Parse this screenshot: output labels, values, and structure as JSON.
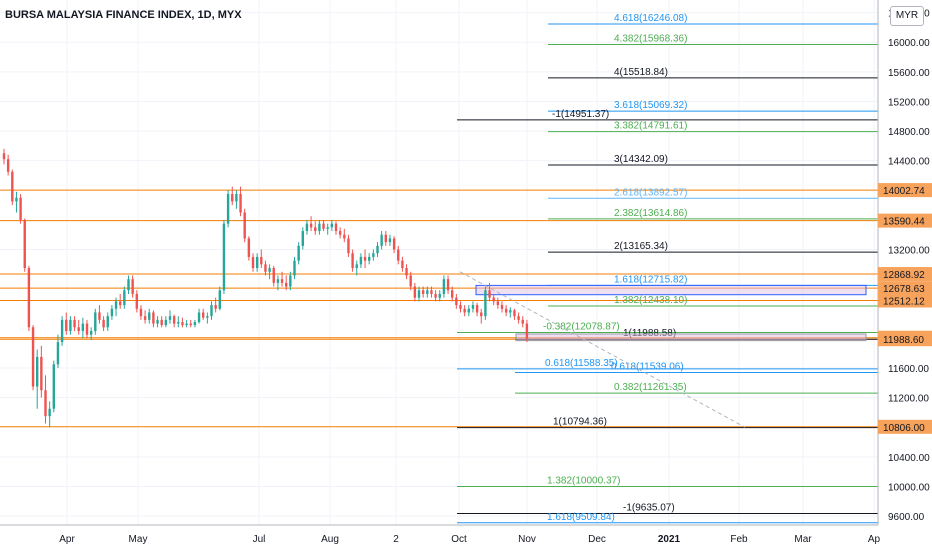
{
  "chart_data": {
    "type": "candlestick",
    "title": "BURSA MALAYSIA FINANCE INDEX, 1D, MYX",
    "currency": "MYR",
    "ylim": [
      9480,
      16570
    ],
    "x_tick_labels": [
      "Apr",
      "May",
      "Jul",
      "Aug",
      "2",
      "Oct",
      "Nov",
      "Dec",
      "2021",
      "Feb",
      "Mar",
      "Ap"
    ],
    "y_tick_labels": [
      "16400.00",
      "16000.00",
      "15600.00",
      "15200.00",
      "14800.00",
      "14400.00",
      "13200.00",
      "11600.00",
      "11200.00",
      "10400.00",
      "10000.00",
      "9600.00"
    ],
    "price_levels": [
      {
        "label": "14002.74",
        "value": 14002.74
      },
      {
        "label": "13590.44",
        "value": 13590.44
      },
      {
        "label": "12868.92",
        "value": 12868.92
      },
      {
        "label": "12678.63",
        "value": 12678.63
      },
      {
        "label": "12512.12",
        "value": 12512.12
      },
      {
        "label": "12009.39",
        "value": 12009.39
      },
      {
        "label": "11988.60",
        "value": 11988.6
      },
      {
        "label": "10806.00",
        "value": 10806
      }
    ],
    "fib_levels": [
      {
        "label": "4.618(16246.08)",
        "value": 16246.08,
        "color": "#2196f3"
      },
      {
        "label": "4.382(15968.36)",
        "value": 15968.36,
        "color": "#4caf50"
      },
      {
        "label": "4(15518.84)",
        "value": 15518.84,
        "color": "#131722"
      },
      {
        "label": "3.618(15069.32)",
        "value": 15069.32,
        "color": "#2196f3"
      },
      {
        "label": "-1(14951.37)",
        "value": 14951.37,
        "color": "#131722"
      },
      {
        "label": "3.382(14791.61)",
        "value": 14791.61,
        "color": "#4caf50"
      },
      {
        "label": "3(14342.09)",
        "value": 14342.09,
        "color": "#131722"
      },
      {
        "label": "2.618(13892.57)",
        "value": 13892.57,
        "color": "#64b5f6"
      },
      {
        "label": "2.382(13614.86)",
        "value": 13614.86,
        "color": "#4caf50"
      },
      {
        "label": "2(13165.34)",
        "value": 13165.34,
        "color": "#131722"
      },
      {
        "label": "1.618(12715.82)",
        "value": 12715.82,
        "color": "#2196f3"
      },
      {
        "label": "1.382(12438.10)",
        "value": 12438.1,
        "color": "#4caf50"
      },
      {
        "label": "-0.382(12078.87)",
        "value": 12078.87,
        "color": "#4caf50"
      },
      {
        "label": "1(11988.58)",
        "value": 11988.58,
        "color": "#131722"
      },
      {
        "label": "0.618(11588.35)",
        "value": 11588.35,
        "color": "#2196f3"
      },
      {
        "label": "0.618(11539.06)",
        "value": 11539.06,
        "color": "#2196f3"
      },
      {
        "label": "0.382(11261.35)",
        "value": 11261.35,
        "color": "#4caf50"
      },
      {
        "label": "1(10794.36)",
        "value": 10794.36,
        "color": "#131722"
      },
      {
        "label": "1.382(10000.37)",
        "value": 10000.37,
        "color": "#4caf50"
      },
      {
        "label": "-1(9635.07)",
        "value": 9635.07,
        "color": "#131722"
      },
      {
        "label": "1.618(9509.84)",
        "value": 9509.84,
        "color": "#2196f3"
      }
    ],
    "colors": {
      "up": "#26a69a",
      "down": "#ef5350",
      "level": "#f57c00",
      "label_bg": "#f7a35c",
      "box_fill": "#e1bee7"
    },
    "candles": [
      {
        "o": 14500,
        "h": 14560,
        "l": 14350,
        "c": 14420
      },
      {
        "o": 14420,
        "h": 14480,
        "l": 14200,
        "c": 14250
      },
      {
        "o": 14250,
        "h": 14280,
        "l": 13800,
        "c": 13850
      },
      {
        "o": 13850,
        "h": 13980,
        "l": 13700,
        "c": 13900
      },
      {
        "o": 13900,
        "h": 13950,
        "l": 13550,
        "c": 13600
      },
      {
        "o": 13600,
        "h": 13620,
        "l": 12900,
        "c": 12950
      },
      {
        "o": 12950,
        "h": 12980,
        "l": 12100,
        "c": 12150
      },
      {
        "o": 12150,
        "h": 12180,
        "l": 11300,
        "c": 11350
      },
      {
        "o": 11350,
        "h": 11850,
        "l": 11050,
        "c": 11750
      },
      {
        "o": 11750,
        "h": 11900,
        "l": 11200,
        "c": 11300
      },
      {
        "o": 11300,
        "h": 11500,
        "l": 10850,
        "c": 10950
      },
      {
        "o": 10950,
        "h": 11150,
        "l": 10800,
        "c": 11050
      },
      {
        "o": 11050,
        "h": 11700,
        "l": 11000,
        "c": 11650
      },
      {
        "o": 11650,
        "h": 12050,
        "l": 11600,
        "c": 11950
      },
      {
        "o": 11950,
        "h": 12300,
        "l": 11900,
        "c": 12250
      },
      {
        "o": 12250,
        "h": 12350,
        "l": 12050,
        "c": 12100
      },
      {
        "o": 12100,
        "h": 12300,
        "l": 12050,
        "c": 12250
      },
      {
        "o": 12250,
        "h": 12300,
        "l": 12100,
        "c": 12150
      },
      {
        "o": 12150,
        "h": 12250,
        "l": 12050,
        "c": 12100
      },
      {
        "o": 12100,
        "h": 12280,
        "l": 12000,
        "c": 12200
      },
      {
        "o": 12200,
        "h": 12250,
        "l": 12000,
        "c": 12050
      },
      {
        "o": 12050,
        "h": 12150,
        "l": 11980,
        "c": 12100
      },
      {
        "o": 12100,
        "h": 12400,
        "l": 12050,
        "c": 12350
      },
      {
        "o": 12350,
        "h": 12450,
        "l": 12200,
        "c": 12250
      },
      {
        "o": 12250,
        "h": 12300,
        "l": 12100,
        "c": 12150
      },
      {
        "o": 12150,
        "h": 12350,
        "l": 12100,
        "c": 12300
      },
      {
        "o": 12300,
        "h": 12450,
        "l": 12250,
        "c": 12400
      },
      {
        "o": 12400,
        "h": 12550,
        "l": 12300,
        "c": 12500
      },
      {
        "o": 12500,
        "h": 12600,
        "l": 12400,
        "c": 12450
      },
      {
        "o": 12450,
        "h": 12700,
        "l": 12400,
        "c": 12650
      },
      {
        "o": 12650,
        "h": 12850,
        "l": 12600,
        "c": 12800
      },
      {
        "o": 12800,
        "h": 12850,
        "l": 12550,
        "c": 12600
      },
      {
        "o": 12600,
        "h": 12650,
        "l": 12350,
        "c": 12400
      },
      {
        "o": 12400,
        "h": 12450,
        "l": 12250,
        "c": 12300
      },
      {
        "o": 12300,
        "h": 12380,
        "l": 12200,
        "c": 12250
      },
      {
        "o": 12250,
        "h": 12400,
        "l": 12200,
        "c": 12350
      },
      {
        "o": 12350,
        "h": 12380,
        "l": 12150,
        "c": 12200
      },
      {
        "o": 12200,
        "h": 12300,
        "l": 12150,
        "c": 12250
      },
      {
        "o": 12250,
        "h": 12300,
        "l": 12150,
        "c": 12180
      },
      {
        "o": 12180,
        "h": 12300,
        "l": 12150,
        "c": 12250
      },
      {
        "o": 12250,
        "h": 12380,
        "l": 12200,
        "c": 12300
      },
      {
        "o": 12300,
        "h": 12320,
        "l": 12150,
        "c": 12200
      },
      {
        "o": 12200,
        "h": 12300,
        "l": 12150,
        "c": 12220
      },
      {
        "o": 12220,
        "h": 12280,
        "l": 12150,
        "c": 12180
      },
      {
        "o": 12180,
        "h": 12250,
        "l": 12150,
        "c": 12200
      },
      {
        "o": 12200,
        "h": 12250,
        "l": 12150,
        "c": 12180
      },
      {
        "o": 12180,
        "h": 12250,
        "l": 12150,
        "c": 12220
      },
      {
        "o": 12220,
        "h": 12400,
        "l": 12200,
        "c": 12350
      },
      {
        "o": 12350,
        "h": 12400,
        "l": 12250,
        "c": 12280
      },
      {
        "o": 12280,
        "h": 12350,
        "l": 12200,
        "c": 12300
      },
      {
        "o": 12300,
        "h": 12500,
        "l": 12250,
        "c": 12450
      },
      {
        "o": 12450,
        "h": 12550,
        "l": 12350,
        "c": 12400
      },
      {
        "o": 12400,
        "h": 12700,
        "l": 12380,
        "c": 12650
      },
      {
        "o": 12650,
        "h": 13600,
        "l": 12600,
        "c": 13550
      },
      {
        "o": 13550,
        "h": 14000,
        "l": 13500,
        "c": 13950
      },
      {
        "o": 13950,
        "h": 14050,
        "l": 13800,
        "c": 13850
      },
      {
        "o": 13850,
        "h": 14000,
        "l": 13750,
        "c": 13950
      },
      {
        "o": 13950,
        "h": 14050,
        "l": 13650,
        "c": 13700
      },
      {
        "o": 13700,
        "h": 13750,
        "l": 13300,
        "c": 13350
      },
      {
        "o": 13350,
        "h": 13380,
        "l": 13050,
        "c": 13100
      },
      {
        "o": 13100,
        "h": 13150,
        "l": 12900,
        "c": 12950
      },
      {
        "o": 12950,
        "h": 13150,
        "l": 12900,
        "c": 13100
      },
      {
        "o": 13100,
        "h": 13200,
        "l": 12950,
        "c": 13000
      },
      {
        "o": 13000,
        "h": 13050,
        "l": 12850,
        "c": 12900
      },
      {
        "o": 12900,
        "h": 13000,
        "l": 12800,
        "c": 12950
      },
      {
        "o": 12950,
        "h": 12980,
        "l": 12700,
        "c": 12750
      },
      {
        "o": 12750,
        "h": 12850,
        "l": 12650,
        "c": 12800
      },
      {
        "o": 12800,
        "h": 12900,
        "l": 12700,
        "c": 12750
      },
      {
        "o": 12750,
        "h": 12850,
        "l": 12650,
        "c": 12700
      },
      {
        "o": 12700,
        "h": 12900,
        "l": 12650,
        "c": 12850
      },
      {
        "o": 12850,
        "h": 13100,
        "l": 12800,
        "c": 13050
      },
      {
        "o": 13050,
        "h": 13300,
        "l": 13000,
        "c": 13250
      },
      {
        "o": 13250,
        "h": 13500,
        "l": 13200,
        "c": 13450
      },
      {
        "o": 13450,
        "h": 13600,
        "l": 13400,
        "c": 13550
      },
      {
        "o": 13550,
        "h": 13650,
        "l": 13450,
        "c": 13500
      },
      {
        "o": 13500,
        "h": 13580,
        "l": 13400,
        "c": 13450
      },
      {
        "o": 13450,
        "h": 13600,
        "l": 13400,
        "c": 13550
      },
      {
        "o": 13550,
        "h": 13600,
        "l": 13450,
        "c": 13480
      },
      {
        "o": 13480,
        "h": 13550,
        "l": 13400,
        "c": 13500
      },
      {
        "o": 13500,
        "h": 13600,
        "l": 13450,
        "c": 13550
      },
      {
        "o": 13550,
        "h": 13580,
        "l": 13400,
        "c": 13450
      },
      {
        "o": 13450,
        "h": 13500,
        "l": 13350,
        "c": 13400
      },
      {
        "o": 13400,
        "h": 13480,
        "l": 13300,
        "c": 13350
      },
      {
        "o": 13350,
        "h": 13400,
        "l": 13100,
        "c": 13150
      },
      {
        "o": 13150,
        "h": 13200,
        "l": 12900,
        "c": 12950
      },
      {
        "o": 12950,
        "h": 13050,
        "l": 12850,
        "c": 13000
      },
      {
        "o": 13000,
        "h": 13150,
        "l": 12950,
        "c": 13100
      },
      {
        "o": 13100,
        "h": 13200,
        "l": 12950,
        "c": 13050
      },
      {
        "o": 13050,
        "h": 13150,
        "l": 13000,
        "c": 13100
      },
      {
        "o": 13100,
        "h": 13200,
        "l": 13050,
        "c": 13150
      },
      {
        "o": 13150,
        "h": 13300,
        "l": 13100,
        "c": 13250
      },
      {
        "o": 13250,
        "h": 13450,
        "l": 13200,
        "c": 13400
      },
      {
        "o": 13400,
        "h": 13450,
        "l": 13250,
        "c": 13300
      },
      {
        "o": 13300,
        "h": 13400,
        "l": 13250,
        "c": 13350
      },
      {
        "o": 13350,
        "h": 13380,
        "l": 13150,
        "c": 13200
      },
      {
        "o": 13200,
        "h": 13250,
        "l": 13000,
        "c": 13050
      },
      {
        "o": 13050,
        "h": 13100,
        "l": 12900,
        "c": 12950
      },
      {
        "o": 12950,
        "h": 13000,
        "l": 12800,
        "c": 12850
      },
      {
        "o": 12850,
        "h": 12900,
        "l": 12650,
        "c": 12700
      },
      {
        "o": 12700,
        "h": 12750,
        "l": 12500,
        "c": 12550
      },
      {
        "o": 12550,
        "h": 12700,
        "l": 12500,
        "c": 12650
      },
      {
        "o": 12650,
        "h": 12700,
        "l": 12550,
        "c": 12600
      },
      {
        "o": 12600,
        "h": 12700,
        "l": 12550,
        "c": 12650
      },
      {
        "o": 12650,
        "h": 12700,
        "l": 12550,
        "c": 12600
      },
      {
        "o": 12600,
        "h": 12650,
        "l": 12500,
        "c": 12550
      },
      {
        "o": 12550,
        "h": 12650,
        "l": 12500,
        "c": 12600
      },
      {
        "o": 12600,
        "h": 12850,
        "l": 12550,
        "c": 12800
      },
      {
        "o": 12800,
        "h": 12850,
        "l": 12600,
        "c": 12650
      },
      {
        "o": 12650,
        "h": 12700,
        "l": 12500,
        "c": 12550
      },
      {
        "o": 12550,
        "h": 12600,
        "l": 12400,
        "c": 12450
      },
      {
        "o": 12450,
        "h": 12500,
        "l": 12350,
        "c": 12400
      },
      {
        "o": 12400,
        "h": 12450,
        "l": 12300,
        "c": 12350
      },
      {
        "o": 12350,
        "h": 12450,
        "l": 12300,
        "c": 12400
      },
      {
        "o": 12400,
        "h": 12500,
        "l": 12350,
        "c": 12450
      },
      {
        "o": 12450,
        "h": 12480,
        "l": 12300,
        "c": 12350
      },
      {
        "o": 12350,
        "h": 12400,
        "l": 12200,
        "c": 12300
      },
      {
        "o": 12300,
        "h": 12700,
        "l": 12250,
        "c": 12650
      },
      {
        "o": 12650,
        "h": 12750,
        "l": 12500,
        "c": 12550
      },
      {
        "o": 12550,
        "h": 12600,
        "l": 12450,
        "c": 12500
      },
      {
        "o": 12500,
        "h": 12550,
        "l": 12400,
        "c": 12450
      },
      {
        "o": 12450,
        "h": 12500,
        "l": 12350,
        "c": 12400
      },
      {
        "o": 12400,
        "h": 12450,
        "l": 12300,
        "c": 12350
      },
      {
        "o": 12350,
        "h": 12420,
        "l": 12280,
        "c": 12380
      },
      {
        "o": 12380,
        "h": 12400,
        "l": 12250,
        "c": 12300
      },
      {
        "o": 12300,
        "h": 12350,
        "l": 12200,
        "c": 12250
      },
      {
        "o": 12250,
        "h": 12300,
        "l": 12150,
        "c": 12200
      },
      {
        "o": 12200,
        "h": 12250,
        "l": 11950,
        "c": 12000
      }
    ]
  }
}
